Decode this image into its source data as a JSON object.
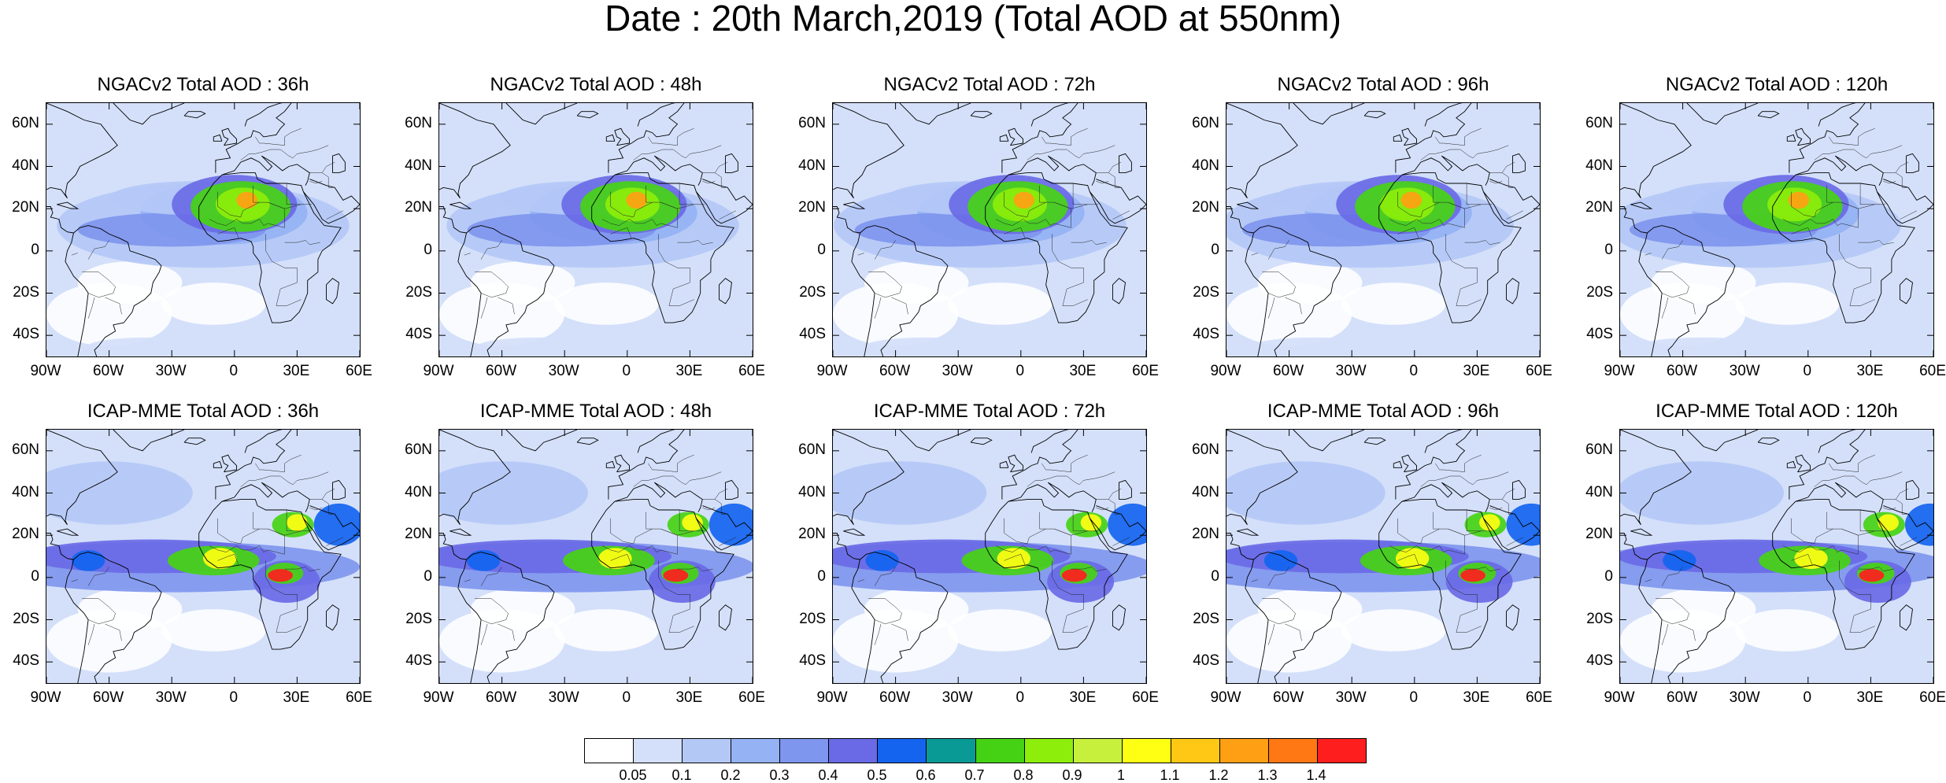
{
  "title": "Date : 20th March,2019 (Total AOD at 550nm)",
  "panels": [
    {
      "title": "NGACv2 Total AOD : 36h",
      "model": "NGACv2",
      "lead": 36,
      "row": 0,
      "col": 0
    },
    {
      "title": "NGACv2 Total AOD : 48h",
      "model": "NGACv2",
      "lead": 48,
      "row": 0,
      "col": 1
    },
    {
      "title": "NGACv2 Total AOD : 72h",
      "model": "NGACv2",
      "lead": 72,
      "row": 0,
      "col": 2
    },
    {
      "title": "NGACv2 Total AOD : 96h",
      "model": "NGACv2",
      "lead": 96,
      "row": 0,
      "col": 3
    },
    {
      "title": "NGACv2 Total AOD : 120h",
      "model": "NGACv2",
      "lead": 120,
      "row": 0,
      "col": 4
    },
    {
      "title": "ICAP-MME Total AOD : 36h",
      "model": "ICAP-MME",
      "lead": 36,
      "row": 1,
      "col": 0
    },
    {
      "title": "ICAP-MME Total AOD : 48h",
      "model": "ICAP-MME",
      "lead": 48,
      "row": 1,
      "col": 1
    },
    {
      "title": "ICAP-MME Total AOD : 72h",
      "model": "ICAP-MME",
      "lead": 72,
      "row": 1,
      "col": 2
    },
    {
      "title": "ICAP-MME Total AOD : 96h",
      "model": "ICAP-MME",
      "lead": 96,
      "row": 1,
      "col": 3
    },
    {
      "title": "ICAP-MME Total AOD : 120h",
      "model": "ICAP-MME",
      "lead": 120,
      "row": 1,
      "col": 4
    }
  ],
  "lon_range": [
    -90,
    60
  ],
  "lat_range": [
    -50,
    70
  ],
  "lon_ticks": [
    -90,
    -60,
    -30,
    0,
    30,
    60
  ],
  "lon_tick_labels": [
    "90W",
    "60W",
    "30W",
    "0",
    "30E",
    "60E"
  ],
  "lat_ticks": [
    60,
    40,
    20,
    0,
    -20,
    -40
  ],
  "lat_tick_labels": [
    "60N",
    "40N",
    "20N",
    "0",
    "20S",
    "40S"
  ],
  "colorbar": {
    "labels": [
      "0.05",
      "0.1",
      "0.2",
      "0.3",
      "0.4",
      "0.5",
      "0.6",
      "0.7",
      "0.8",
      "0.9",
      "1",
      "1.1",
      "1.2",
      "1.3",
      "1.4"
    ],
    "colors": [
      "#ffffff",
      "#d4e0fa",
      "#b4c8f6",
      "#94b2f4",
      "#7f96ee",
      "#6a6ae6",
      "#1464f0",
      "#0a9a96",
      "#46d214",
      "#8cee0a",
      "#c6f03c",
      "#ffff14",
      "#ffc814",
      "#ffa014",
      "#ff7814",
      "#ff1e1e"
    ]
  },
  "colors": {
    "coast": "#000000",
    "background": "#ffffff"
  }
}
